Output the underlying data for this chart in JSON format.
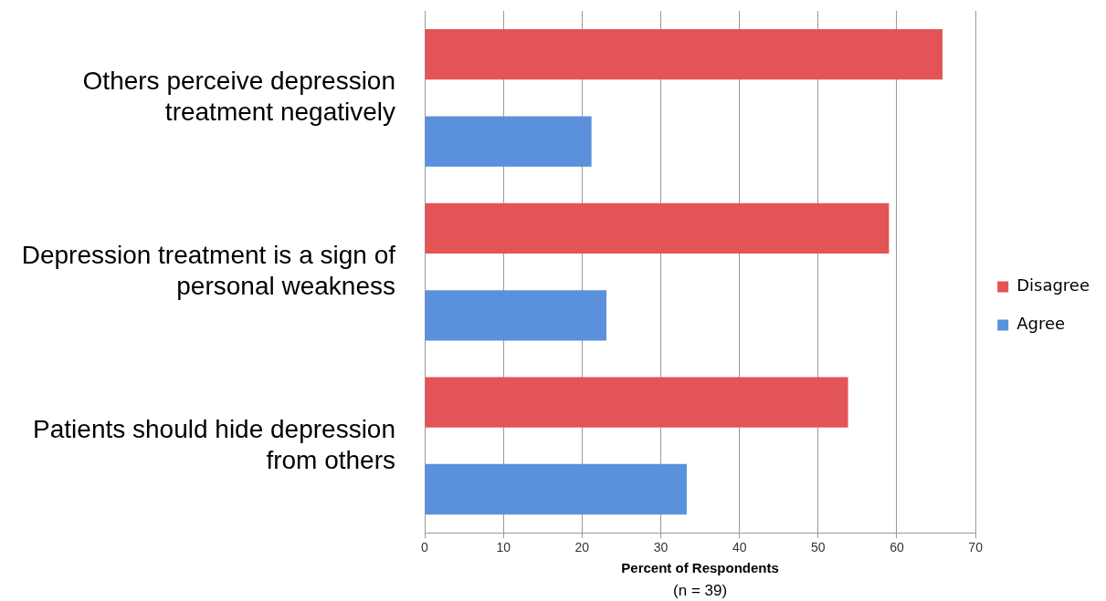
{
  "chart_data": {
    "type": "bar",
    "orientation": "horizontal",
    "categories": [
      "Others perceive depression treatment negatively",
      "Depression treatment is a sign of personal weakness",
      "Patients should hide depression from others"
    ],
    "series": [
      {
        "name": "Disagree",
        "color": "#e35456",
        "values": [
          65.8,
          59,
          53.8
        ]
      },
      {
        "name": "Agree",
        "color": "#5b91dc",
        "values": [
          21.2,
          23.1,
          33.3
        ]
      }
    ],
    "xlabel": "Percent of Respondents",
    "annotations": [
      "(n = 39)"
    ],
    "xlim": [
      0,
      70
    ],
    "xticks": [
      0,
      10,
      20,
      30,
      40,
      50,
      60,
      70
    ],
    "grid": "x",
    "legend": "right"
  }
}
